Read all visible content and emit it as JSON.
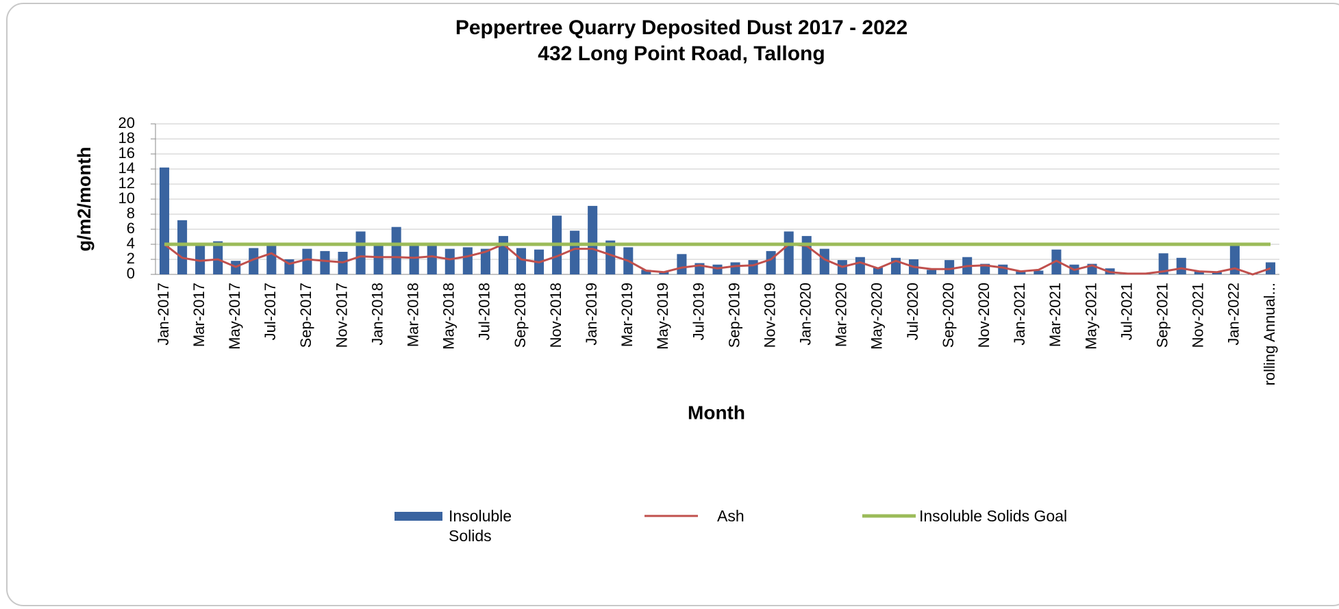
{
  "chart_data": {
    "type": "bar",
    "title": "Peppertree Quarry Deposited Dust 2017 - 2022",
    "subtitle": "432 Long Point Road, Tallong",
    "x_label": "Month",
    "y_label": "g/m2/month",
    "categories": [
      "Jan-2017",
      null,
      "Mar-2017",
      null,
      "May-2017",
      null,
      "Jul-2017",
      null,
      "Sep-2017",
      null,
      "Nov-2017",
      null,
      "Jan-2018",
      null,
      "Mar-2018",
      null,
      "May-2018",
      null,
      "Jul-2018",
      null,
      "Sep-2018",
      null,
      "Nov-2018",
      null,
      "Jan-2019",
      null,
      "Mar-2019",
      null,
      "May-2019",
      null,
      "Jul-2019",
      null,
      "Sep-2019",
      null,
      "Nov-2019",
      null,
      "Jan-2020",
      null,
      "Mar-2020",
      null,
      "May-2020",
      null,
      "Jul-2020",
      null,
      "Sep-2020",
      null,
      "Nov-2020",
      null,
      "Jan-2021",
      null,
      "Mar-2021",
      null,
      "May-2021",
      null,
      "Jul-2021",
      null,
      "Sep-2021",
      null,
      "Nov-2021",
      null,
      "Jan-2022",
      null,
      "rolling Annual..."
    ],
    "series": [
      {
        "name": "Insoluble Solids",
        "type": "bar",
        "color": "#3a64a0",
        "values": [
          14.2,
          7.2,
          3.8,
          4.4,
          1.8,
          3.5,
          3.8,
          2.0,
          3.4,
          3.1,
          3.0,
          5.7,
          3.8,
          6.3,
          3.8,
          3.8,
          3.4,
          3.6,
          3.4,
          5.1,
          3.5,
          3.3,
          7.8,
          5.8,
          9.1,
          4.5,
          3.6,
          0.6,
          0.4,
          2.7,
          1.5,
          1.3,
          1.6,
          1.9,
          3.1,
          5.7,
          5.1,
          3.4,
          1.9,
          2.3,
          0.9,
          2.2,
          2.0,
          0.6,
          1.9,
          2.3,
          1.4,
          1.3,
          0.5,
          0.5,
          3.3,
          1.3,
          1.4,
          0.8,
          0.2,
          0.2,
          2.8,
          2.2,
          0.4,
          0.3,
          3.9,
          0.1,
          1.6
        ]
      },
      {
        "name": "Ash",
        "type": "line",
        "color": "#c0504d",
        "values": [
          4.0,
          2.2,
          1.8,
          2.0,
          1.0,
          2.0,
          2.8,
          1.4,
          2.0,
          1.8,
          1.6,
          2.4,
          2.3,
          2.3,
          2.2,
          2.4,
          2.0,
          2.4,
          3.0,
          4.0,
          2.0,
          1.6,
          2.4,
          3.4,
          3.4,
          2.6,
          1.8,
          0.5,
          0.3,
          0.9,
          1.2,
          0.8,
          1.1,
          1.2,
          2.0,
          4.0,
          3.8,
          2.0,
          1.0,
          1.6,
          0.8,
          1.8,
          1.0,
          0.7,
          0.7,
          1.1,
          1.2,
          0.9,
          0.4,
          0.6,
          1.8,
          0.6,
          1.2,
          0.3,
          0.1,
          0.1,
          0.4,
          0.8,
          0.4,
          0.3,
          0.8,
          0.0,
          0.8
        ]
      },
      {
        "name": "Insoluble Solids Goal",
        "type": "line",
        "color": "#9bbb59",
        "values": [
          4,
          4,
          4,
          4,
          4,
          4,
          4,
          4,
          4,
          4,
          4,
          4,
          4,
          4,
          4,
          4,
          4,
          4,
          4,
          4,
          4,
          4,
          4,
          4,
          4,
          4,
          4,
          4,
          4,
          4,
          4,
          4,
          4,
          4,
          4,
          4,
          4,
          4,
          4,
          4,
          4,
          4,
          4,
          4,
          4,
          4,
          4,
          4,
          4,
          4,
          4,
          4,
          4,
          4,
          4,
          4,
          4,
          4,
          4,
          4,
          4,
          4,
          4
        ]
      }
    ],
    "ylim": [
      0,
      20
    ],
    "yticks": [
      0,
      2,
      4,
      6,
      8,
      10,
      12,
      14,
      16,
      18,
      20
    ],
    "grid": true,
    "legend": "bottom"
  }
}
